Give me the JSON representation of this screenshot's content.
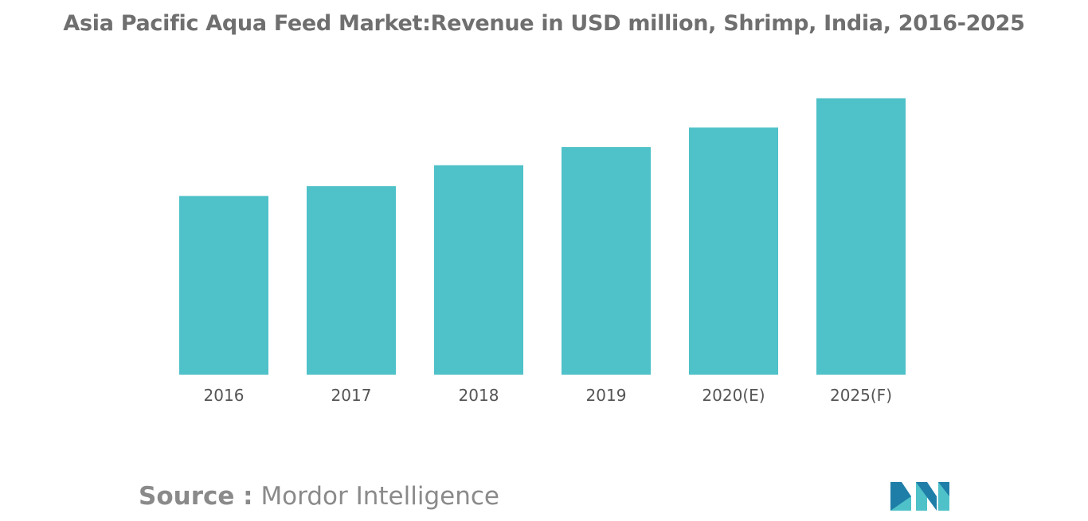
{
  "title": "Asia Pacific Aqua Feed Market:Revenue in USD million, Shrimp, India, 2016-2025",
  "source": {
    "label": "Source :",
    "value": "Mordor Intelligence"
  },
  "colors": {
    "bar": "#4fc1c8",
    "logo_light": "#4fc1c8",
    "logo_dark": "#1f7ea8"
  },
  "chart_data": {
    "type": "bar",
    "title": "Asia Pacific Aqua Feed Market:Revenue in USD million, Shrimp, India, 2016-2025",
    "categories": [
      "2016",
      "2017",
      "2018",
      "2019",
      "2020(E)",
      "2025(F)"
    ],
    "values": [
      64,
      67.5,
      75,
      81.5,
      88.5,
      99
    ],
    "xlabel": "",
    "ylabel": "",
    "ylim": [
      0,
      100
    ],
    "grid": false,
    "legend": "none"
  }
}
